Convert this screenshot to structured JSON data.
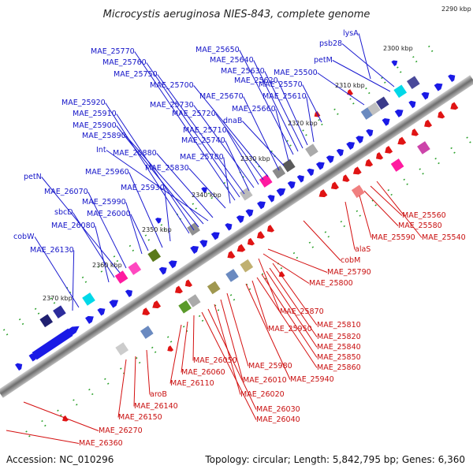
{
  "title": "Microcystis aeruginosa NIES-843, complete genome",
  "footer": {
    "accession": "Accession: NC_010296",
    "info": "Topology: circular; Length: 5,842,795 bp; Genes: 6,360"
  },
  "kbp_ticks": [
    "2290 kbp",
    "2300 kbp",
    "2310 kbp",
    "2320 kbp",
    "2330 kbp",
    "2340 kbp",
    "2350 kbp",
    "2360 kbp",
    "2370 kbp"
  ],
  "labels_top": [
    "lysA",
    "psb28",
    "petM",
    "MAE_25500",
    "MAE_25570",
    "MAE_25610",
    "MAE_25620",
    "MAE_25630",
    "MAE_25640",
    "MAE_25650",
    "MAE_25660",
    "dnaB",
    "MAE_25670",
    "MAE_25700",
    "MAE_25720",
    "MAE_25710",
    "MAE_25730",
    "MAE_25740",
    "MAE_25750",
    "MAE_25760",
    "MAE_25770",
    "MAE_25780",
    "MAE_25830",
    "MAE_25880",
    "Int",
    "MAE_25890",
    "MAE_25900",
    "MAE_25910",
    "MAE_25920",
    "MAE_25930",
    "MAE_25960",
    "MAE_25990",
    "MAE_26000",
    "MAE_26070",
    "petN",
    "sbcD",
    "MAE_26080",
    "cobW",
    "MAE_26130"
  ],
  "labels_bottom": [
    "MAE_25560",
    "MAE_25580",
    "MAE_25590",
    "MAE_25540",
    "alaS",
    "cobM",
    "MAE_25790",
    "MAE_25800",
    "MAE_25870",
    "MAE_25810",
    "MAE_25820",
    "MAE_25840",
    "MAE_25850",
    "MAE_25860",
    "MAE_25950",
    "MAE_25940",
    "MAE_25980",
    "MAE_26010",
    "MAE_26020",
    "MAE_26050",
    "MAE_26060",
    "MAE_26110",
    "MAE_26030",
    "MAE_26040",
    "aroB",
    "MAE_26140",
    "MAE_26150",
    "MAE_26270",
    "MAE_26360"
  ]
}
